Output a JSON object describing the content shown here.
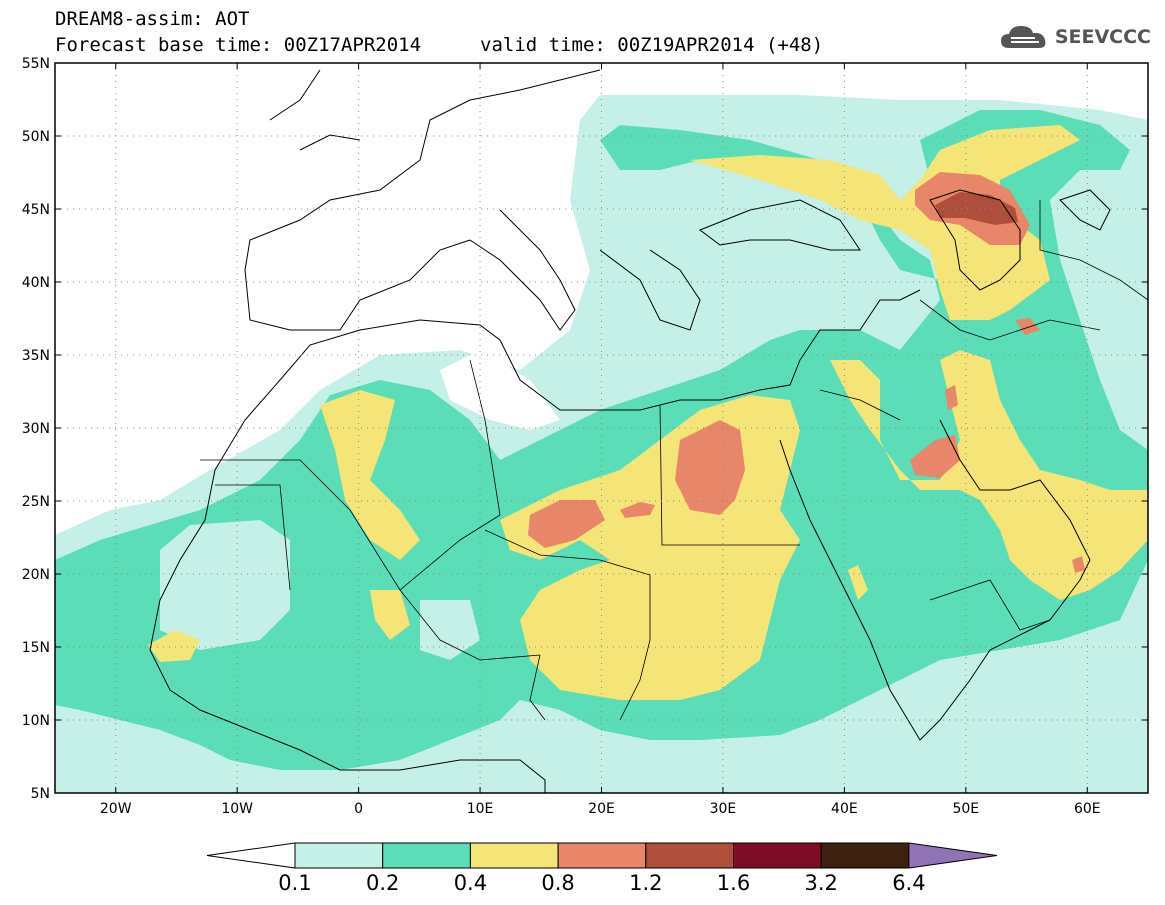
{
  "header": {
    "line1": "DREAM8-assim: AOT",
    "line2": "Forecast base time: 00Z17APR2014",
    "valid": "valid time: 00Z19APR2014 (+48)",
    "logo_text": "SEEVCCC",
    "logo_icon": "cloud-icon"
  },
  "map": {
    "lon_range": [
      -25,
      65
    ],
    "lat_range": [
      5,
      55
    ],
    "lat_ticks": [
      "5N",
      "10N",
      "15N",
      "20N",
      "25N",
      "30N",
      "35N",
      "40N",
      "45N",
      "50N",
      "55N"
    ],
    "lon_ticks": [
      "20W",
      "10W",
      "0",
      "10E",
      "20E",
      "30E",
      "40E",
      "50E",
      "60E"
    ],
    "grid": true
  },
  "colorbar": {
    "levels": [
      "0.1",
      "0.2",
      "0.4",
      "0.8",
      "1.2",
      "1.6",
      "3.2",
      "6.4"
    ],
    "colors": [
      "#ffffff",
      "#c4f0e8",
      "#5bddb7",
      "#f5e477",
      "#e8866a",
      "#b04e3c",
      "#7e0d28",
      "#3c2010",
      "#9073b4"
    ]
  }
}
